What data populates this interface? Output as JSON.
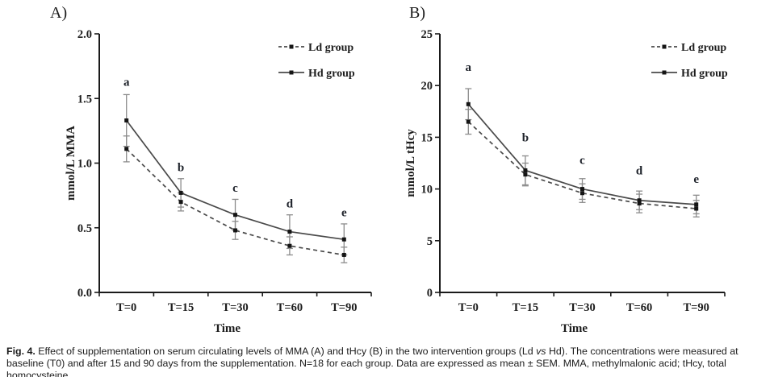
{
  "colors": {
    "background": "#ffffff",
    "axis": "#1a1a1a",
    "series_line": "#4a4a4a",
    "marker": "#151515",
    "error_bar": "#8c8c8c",
    "text": "#1d1d1d"
  },
  "caption": {
    "label": "Fig. 4.",
    "part1": " Effect of supplementation on serum circulating levels of MMA (A) and tHcy (B) in the two intervention groups (Ld ",
    "vs_word": "vs",
    "part2": " Hd). The concentrations were measured at baseline (T0) and after 15 and 90 days from the supplementation. N=18 for each group. Data are expressed as mean ± SEM. MMA, methylmalonic acid; tHcy, total homocysteine."
  },
  "chart_data": [
    {
      "type": "line",
      "panel_label": "A)",
      "ylabel": "mmol/L MMA",
      "xlabel": "Time",
      "categories": [
        "T=0",
        "T=15",
        "T=30",
        "T=60",
        "T=90"
      ],
      "ylim": [
        0.0,
        2.0
      ],
      "yticks": [
        0.0,
        0.5,
        1.0,
        1.5,
        2.0
      ],
      "ytick_labels": [
        "0.0",
        "0.5",
        "1.0",
        "1.5",
        "2.0"
      ],
      "grid": false,
      "legend_position": "top-right",
      "series": [
        {
          "name": "Ld group",
          "line_style": "dashed",
          "values": [
            1.11,
            0.7,
            0.48,
            0.36,
            0.29
          ],
          "errors": [
            0.1,
            0.07,
            0.07,
            0.07,
            0.06
          ]
        },
        {
          "name": "Hd group",
          "line_style": "solid",
          "values": [
            1.33,
            0.77,
            0.6,
            0.47,
            0.41
          ],
          "errors": [
            0.2,
            0.11,
            0.12,
            0.13,
            0.12
          ]
        }
      ],
      "annotations": [
        {
          "text": "a",
          "x": 0,
          "y": 1.63
        },
        {
          "text": "b",
          "x": 1,
          "y": 0.97
        },
        {
          "text": "c",
          "x": 2,
          "y": 0.81
        },
        {
          "text": "d",
          "x": 3,
          "y": 0.69
        },
        {
          "text": "e",
          "x": 4,
          "y": 0.62
        }
      ]
    },
    {
      "type": "line",
      "panel_label": "B)",
      "ylabel": "mmol/L tHcy",
      "xlabel": "Time",
      "categories": [
        "T=0",
        "T=15",
        "T=30",
        "T=60",
        "T=90"
      ],
      "ylim": [
        0,
        25
      ],
      "yticks": [
        0,
        5,
        10,
        15,
        20,
        25
      ],
      "ytick_labels": [
        "0",
        "5",
        "10",
        "15",
        "20",
        "25"
      ],
      "grid": false,
      "legend_position": "top-right",
      "series": [
        {
          "name": "Ld group",
          "line_style": "dashed",
          "values": [
            16.5,
            11.4,
            9.6,
            8.6,
            8.1
          ],
          "errors": [
            1.2,
            1.1,
            0.9,
            0.9,
            0.8
          ]
        },
        {
          "name": "Hd group",
          "line_style": "solid",
          "values": [
            18.2,
            11.8,
            10.0,
            8.9,
            8.5
          ],
          "errors": [
            1.5,
            1.4,
            1.0,
            0.9,
            0.9
          ]
        }
      ],
      "annotations": [
        {
          "text": "a",
          "x": 0,
          "y": 21.8
        },
        {
          "text": "b",
          "x": 1,
          "y": 15.0
        },
        {
          "text": "c",
          "x": 2,
          "y": 12.8
        },
        {
          "text": "d",
          "x": 3,
          "y": 11.8
        },
        {
          "text": "e",
          "x": 4,
          "y": 11.0
        }
      ]
    }
  ]
}
